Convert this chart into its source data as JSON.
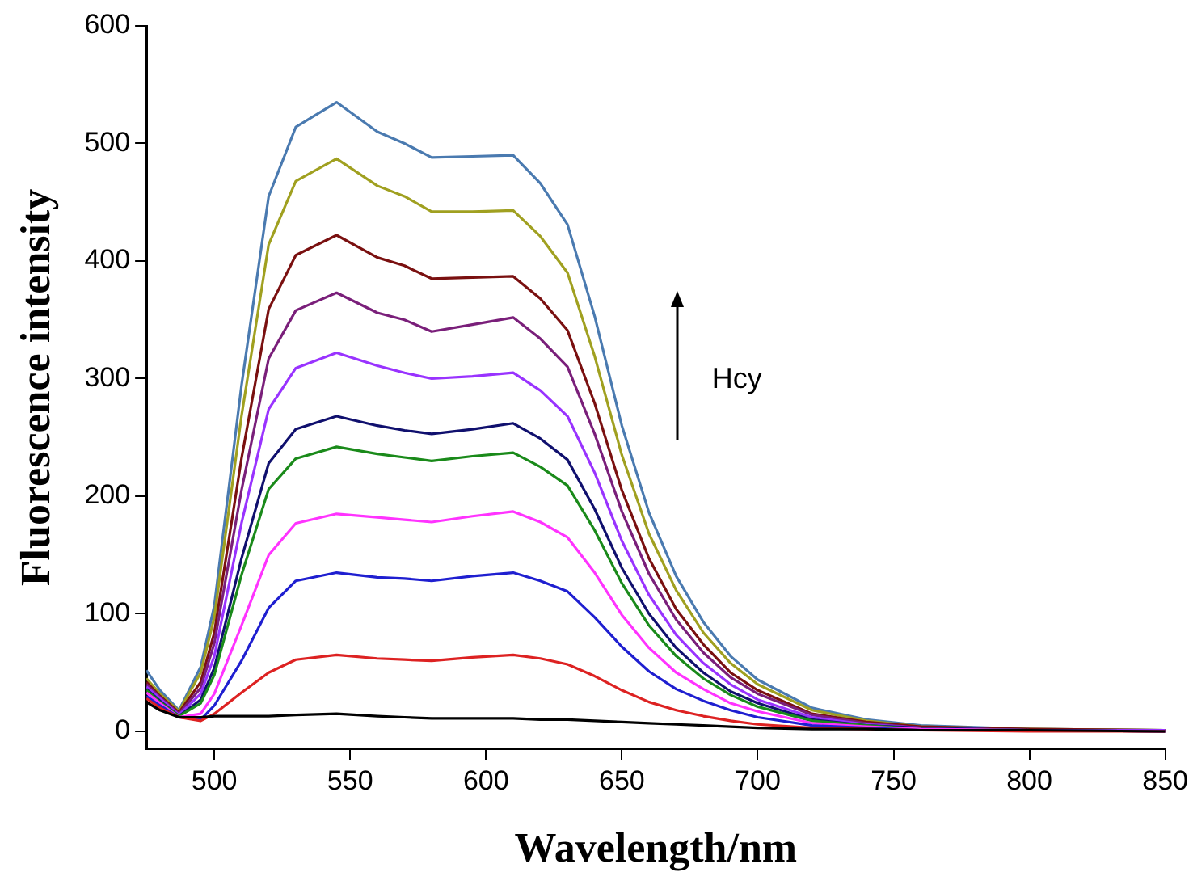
{
  "chart_data": {
    "type": "line",
    "xlabel": "Wavelength/nm",
    "ylabel": "Fluorescence intensity",
    "annotations": [
      "Hcy"
    ],
    "x": [
      475,
      480,
      487,
      495,
      500,
      510,
      520,
      530,
      545,
      560,
      570,
      580,
      595,
      610,
      620,
      630,
      640,
      650,
      660,
      670,
      680,
      690,
      700,
      720,
      740,
      760,
      800,
      850
    ],
    "xlim": [
      475,
      850
    ],
    "xticks": [
      500,
      550,
      600,
      650,
      700,
      750,
      800,
      850
    ],
    "ylim": [
      -15,
      600
    ],
    "yticks": [
      0,
      100,
      200,
      300,
      400,
      500,
      600
    ],
    "grid": false,
    "legend": false,
    "marker": "none",
    "line_style": "solid",
    "series": [
      {
        "color": "#000000",
        "values": [
          25,
          18,
          12,
          12,
          13,
          13,
          13,
          14,
          15,
          13,
          12,
          11,
          11,
          11,
          10,
          10,
          9,
          8,
          7,
          6,
          5,
          4,
          3,
          2,
          2,
          1,
          1,
          0
        ]
      },
      {
        "color": "#dd2222",
        "values": [
          28,
          20,
          12,
          9,
          15,
          33,
          50,
          61,
          65,
          62,
          61,
          60,
          63,
          65,
          62,
          57,
          47,
          35,
          25,
          18,
          13,
          9,
          6,
          3,
          2,
          1,
          0,
          0
        ]
      },
      {
        "color": "#1f1fd0",
        "values": [
          30,
          22,
          12,
          10,
          22,
          60,
          105,
          128,
          135,
          131,
          130,
          128,
          132,
          135,
          128,
          119,
          97,
          72,
          51,
          36,
          26,
          18,
          12,
          5,
          3,
          1,
          1,
          0
        ]
      },
      {
        "color": "#ff33ff",
        "values": [
          33,
          24,
          12,
          15,
          32,
          90,
          150,
          177,
          185,
          182,
          180,
          178,
          183,
          187,
          178,
          165,
          135,
          99,
          71,
          50,
          36,
          24,
          17,
          7,
          4,
          2,
          1,
          0
        ]
      },
      {
        "color": "#1a8a1a",
        "values": [
          35,
          25,
          13,
          24,
          48,
          133,
          206,
          232,
          242,
          236,
          233,
          230,
          234,
          237,
          225,
          209,
          171,
          126,
          90,
          64,
          45,
          31,
          21,
          9,
          5,
          2,
          1,
          0
        ]
      },
      {
        "color": "#10106e",
        "values": [
          36,
          26,
          13,
          27,
          54,
          147,
          228,
          257,
          268,
          260,
          256,
          253,
          257,
          262,
          249,
          231,
          189,
          139,
          100,
          71,
          50,
          34,
          24,
          10,
          5,
          3,
          1,
          0
        ]
      },
      {
        "color": "#9933ff",
        "values": [
          38,
          28,
          14,
          32,
          64,
          177,
          274,
          309,
          322,
          311,
          305,
          300,
          302,
          305,
          290,
          268,
          220,
          162,
          116,
          82,
          58,
          40,
          27,
          12,
          6,
          3,
          1,
          1
        ]
      },
      {
        "color": "#7a1f7a",
        "values": [
          40,
          29,
          15,
          37,
          75,
          205,
          317,
          358,
          373,
          356,
          350,
          340,
          346,
          352,
          334,
          310,
          253,
          187,
          134,
          95,
          67,
          46,
          32,
          14,
          7,
          3,
          1,
          1
        ]
      },
      {
        "color": "#7a1010",
        "values": [
          42,
          30,
          16,
          42,
          84,
          232,
          359,
          405,
          422,
          403,
          396,
          385,
          386,
          387,
          368,
          341,
          279,
          205,
          147,
          104,
          74,
          50,
          35,
          15,
          8,
          4,
          2,
          1
        ]
      },
      {
        "color": "#a0a020",
        "values": [
          45,
          32,
          17,
          50,
          97,
          268,
          414,
          468,
          487,
          464,
          455,
          442,
          442,
          443,
          421,
          390,
          319,
          235,
          168,
          120,
          84,
          58,
          40,
          18,
          9,
          4,
          2,
          1
        ]
      },
      {
        "color": "#4a7ab0",
        "values": [
          52,
          35,
          18,
          55,
          107,
          294,
          455,
          514,
          535,
          510,
          500,
          488,
          489,
          490,
          466,
          431,
          353,
          260,
          186,
          132,
          93,
          64,
          44,
          20,
          10,
          5,
          2,
          1
        ]
      }
    ]
  }
}
